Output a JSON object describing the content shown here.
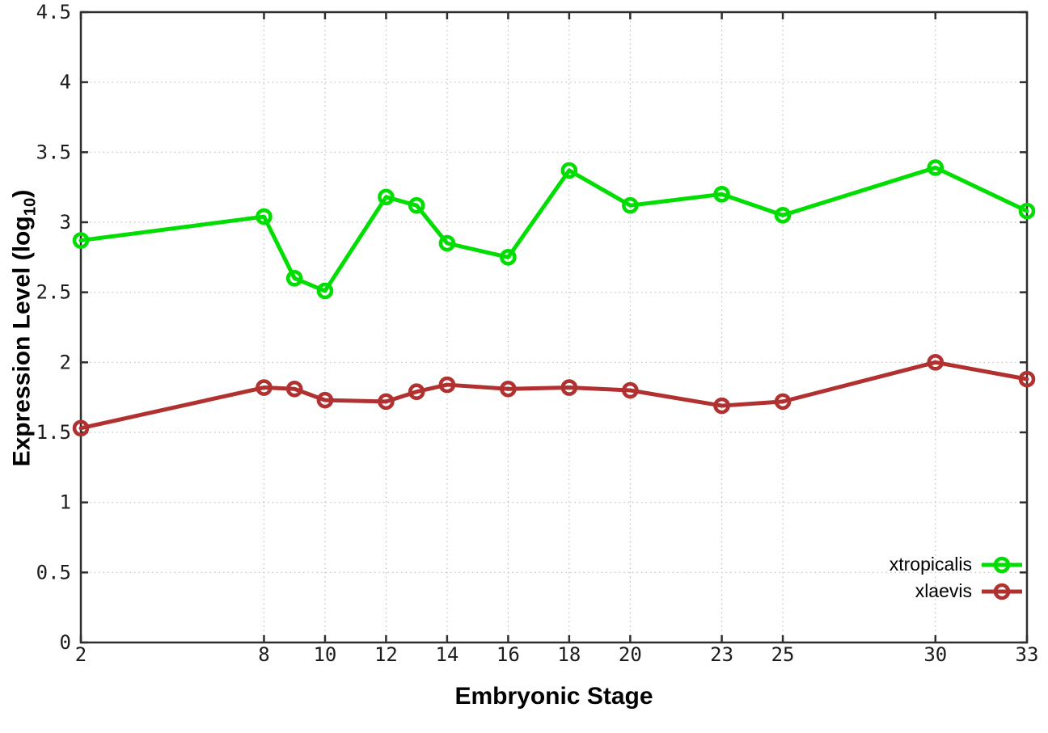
{
  "chart_data": {
    "type": "line",
    "title": "",
    "xlabel": "Embryonic Stage",
    "ylabel_prefix": "Expression Level (log",
    "ylabel_sub": "10",
    "ylabel_suffix": ")",
    "x": [
      2,
      8,
      9,
      10,
      12,
      13,
      14,
      16,
      18,
      20,
      23,
      25,
      30,
      33
    ],
    "x_tick_labels": [
      2,
      8,
      10,
      12,
      14,
      16,
      18,
      20,
      23,
      25,
      30,
      33
    ],
    "y_ticks": [
      0,
      0.5,
      1,
      1.5,
      2,
      2.5,
      3,
      3.5,
      4,
      4.5
    ],
    "xlim": [
      2,
      33
    ],
    "ylim": [
      0,
      4.5
    ],
    "grid": true,
    "grid_style": "dotted",
    "legend_position": "inside-bottom-right",
    "series": [
      {
        "name": "xtropicalis",
        "color": "#00dd00",
        "marker": "open-circle",
        "values": [
          2.87,
          3.04,
          2.6,
          2.51,
          3.18,
          3.12,
          2.85,
          2.75,
          3.37,
          3.12,
          3.2,
          3.05,
          3.39,
          3.08
        ]
      },
      {
        "name": "xlaevis",
        "color": "#b13030",
        "marker": "open-circle",
        "values": [
          1.53,
          1.82,
          1.81,
          1.73,
          1.72,
          1.79,
          1.84,
          1.81,
          1.82,
          1.8,
          1.69,
          1.72,
          2.0,
          1.88
        ]
      }
    ],
    "axis_color": "#2f2f2f",
    "grid_color": "#bfbfbf",
    "tick_label_color": "#1c1c1c"
  }
}
